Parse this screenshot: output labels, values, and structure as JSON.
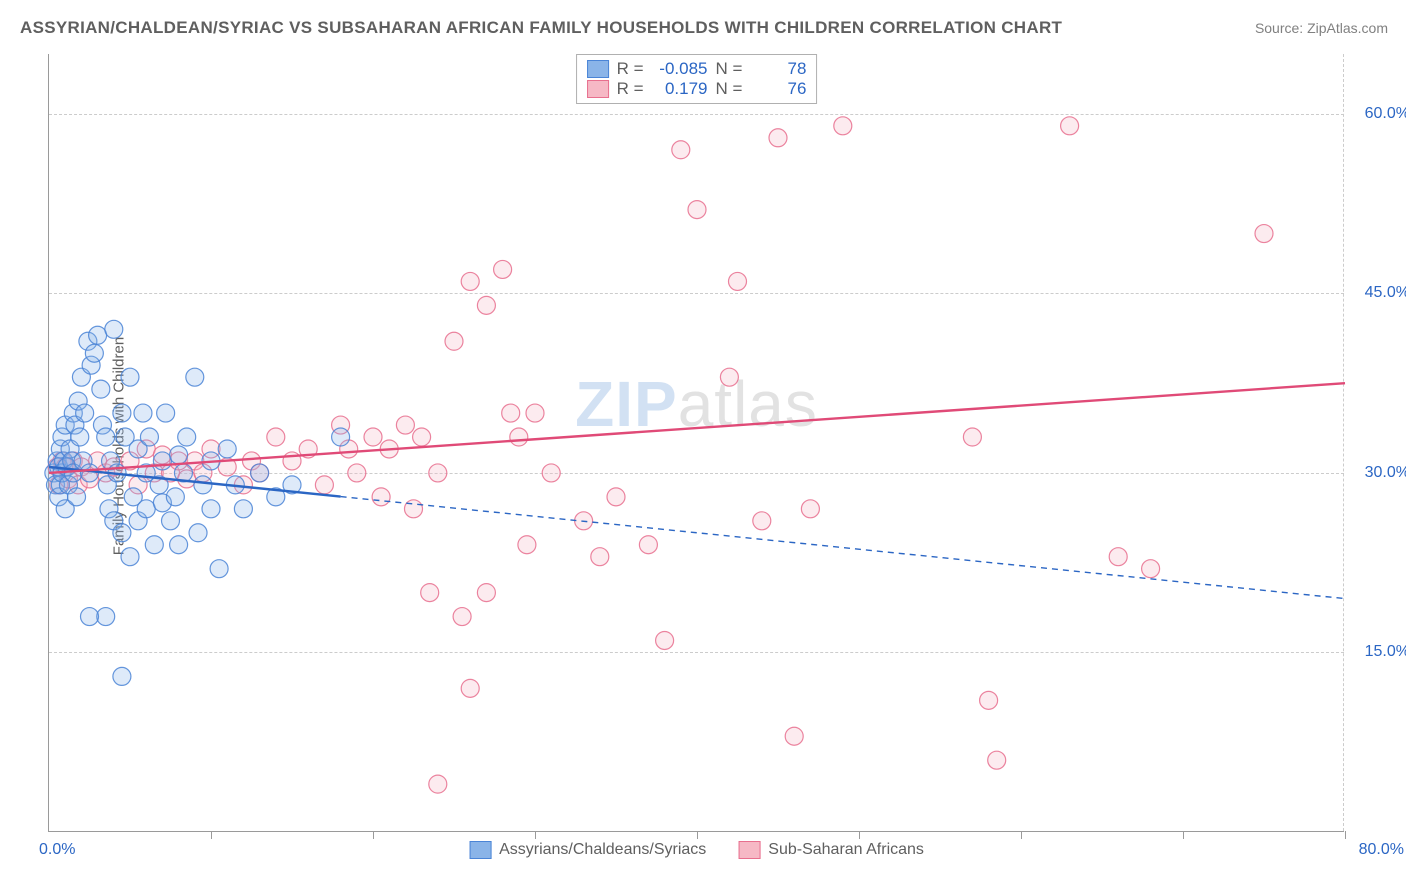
{
  "title": "ASSYRIAN/CHALDEAN/SYRIAC VS SUBSAHARAN AFRICAN FAMILY HOUSEHOLDS WITH CHILDREN CORRELATION CHART",
  "source": "Source: ZipAtlas.com",
  "watermark_zip": "ZIP",
  "watermark_atlas": "atlas",
  "ylabel": "Family Households with Children",
  "chart": {
    "type": "scatter",
    "xlim": [
      0,
      80
    ],
    "ylim": [
      0,
      65
    ],
    "xticks": [
      0,
      10,
      20,
      30,
      40,
      50,
      60,
      70,
      80
    ],
    "yticks": [
      15,
      30,
      45,
      60
    ],
    "ytick_labels": [
      "15.0%",
      "30.0%",
      "45.0%",
      "60.0%"
    ],
    "xmin_label": "0.0%",
    "xmax_label": "80.0%",
    "background_color": "#ffffff",
    "grid_color": "#cccccc",
    "axis_color": "#9a9a9a",
    "tick_label_color": "#2b66c4",
    "marker_radius": 9,
    "marker_fill_opacity": 0.28,
    "marker_stroke_opacity": 0.85,
    "marker_stroke_width": 1.2,
    "line_width": 2.4,
    "dash_pattern": "6,5"
  },
  "series": {
    "blue": {
      "label": "Assyrians/Chaldeans/Syriacs",
      "fill": "#8ab4e8",
      "stroke": "#4a84d6",
      "line_color": "#2b66c4",
      "R": "-0.085",
      "N": "78",
      "trend": {
        "x1": 0,
        "y1": 30.5,
        "x2": 80,
        "y2": 19.5,
        "solid_until_x": 18
      },
      "points": [
        [
          0.3,
          30
        ],
        [
          0.4,
          29
        ],
        [
          0.5,
          31
        ],
        [
          0.6,
          28
        ],
        [
          0.6,
          30.5
        ],
        [
          0.7,
          32
        ],
        [
          0.7,
          29
        ],
        [
          0.8,
          33
        ],
        [
          0.8,
          30
        ],
        [
          0.9,
          31
        ],
        [
          1.0,
          34
        ],
        [
          1.0,
          27
        ],
        [
          1.1,
          30.5
        ],
        [
          1.2,
          29
        ],
        [
          1.3,
          32
        ],
        [
          1.4,
          31
        ],
        [
          1.5,
          35
        ],
        [
          1.5,
          30
        ],
        [
          1.6,
          34
        ],
        [
          1.7,
          28
        ],
        [
          1.8,
          36
        ],
        [
          1.9,
          33
        ],
        [
          2.0,
          38
        ],
        [
          2.1,
          31
        ],
        [
          2.2,
          35
        ],
        [
          2.4,
          41
        ],
        [
          2.5,
          30
        ],
        [
          2.6,
          39
        ],
        [
          2.8,
          40
        ],
        [
          3.0,
          41.5
        ],
        [
          3.2,
          37
        ],
        [
          3.3,
          34
        ],
        [
          3.5,
          33
        ],
        [
          3.6,
          29
        ],
        [
          3.7,
          27
        ],
        [
          3.8,
          31
        ],
        [
          4.0,
          42
        ],
        [
          4.0,
          26
        ],
        [
          4.2,
          30
        ],
        [
          4.5,
          35
        ],
        [
          4.5,
          25
        ],
        [
          4.7,
          33
        ],
        [
          5.0,
          38
        ],
        [
          5.0,
          23
        ],
        [
          5.2,
          28
        ],
        [
          5.5,
          32
        ],
        [
          5.5,
          26
        ],
        [
          5.8,
          35
        ],
        [
          6.0,
          30
        ],
        [
          6.0,
          27
        ],
        [
          6.2,
          33
        ],
        [
          6.5,
          24
        ],
        [
          6.8,
          29
        ],
        [
          7.0,
          27.5
        ],
        [
          7.0,
          31
        ],
        [
          7.2,
          35
        ],
        [
          7.5,
          26
        ],
        [
          7.8,
          28
        ],
        [
          8.0,
          31.5
        ],
        [
          8.0,
          24
        ],
        [
          8.3,
          30
        ],
        [
          8.5,
          33
        ],
        [
          9.0,
          38
        ],
        [
          9.2,
          25
        ],
        [
          9.5,
          29
        ],
        [
          10.0,
          27
        ],
        [
          10.0,
          31
        ],
        [
          10.5,
          22
        ],
        [
          11.0,
          32
        ],
        [
          11.5,
          29
        ],
        [
          12.0,
          27
        ],
        [
          13.0,
          30
        ],
        [
          14.0,
          28
        ],
        [
          15.0,
          29
        ],
        [
          3.5,
          18
        ],
        [
          4.5,
          13
        ],
        [
          2.5,
          18
        ],
        [
          18.0,
          33
        ]
      ]
    },
    "pink": {
      "label": "Sub-Saharan Africans",
      "fill": "#f6b8c5",
      "stroke": "#e86f8e",
      "line_color": "#e04a77",
      "R": "0.179",
      "N": "76",
      "trend": {
        "x1": 0,
        "y1": 30.0,
        "x2": 80,
        "y2": 37.5,
        "solid_until_x": 80
      },
      "points": [
        [
          0.5,
          30.5
        ],
        [
          0.6,
          29
        ],
        [
          0.8,
          31
        ],
        [
          1.0,
          30.5
        ],
        [
          1.2,
          29.5
        ],
        [
          1.5,
          31
        ],
        [
          1.8,
          29
        ],
        [
          2.0,
          30.5
        ],
        [
          2.5,
          29.5
        ],
        [
          3.0,
          31
        ],
        [
          3.5,
          30
        ],
        [
          4.0,
          30.5
        ],
        [
          5.0,
          31
        ],
        [
          5.5,
          29
        ],
        [
          6.0,
          32
        ],
        [
          6.5,
          30
        ],
        [
          7.0,
          31.5
        ],
        [
          7.5,
          30
        ],
        [
          8.0,
          31
        ],
        [
          8.5,
          29.5
        ],
        [
          9.0,
          31
        ],
        [
          9.5,
          30
        ],
        [
          10.0,
          32
        ],
        [
          11.0,
          30.5
        ],
        [
          12.0,
          29
        ],
        [
          12.5,
          31
        ],
        [
          13.0,
          30
        ],
        [
          14.0,
          33
        ],
        [
          15.0,
          31
        ],
        [
          16.0,
          32
        ],
        [
          17.0,
          29
        ],
        [
          18.0,
          34
        ],
        [
          18.5,
          32
        ],
        [
          19.0,
          30
        ],
        [
          20.0,
          33
        ],
        [
          20.5,
          28
        ],
        [
          21.0,
          32
        ],
        [
          22.0,
          34
        ],
        [
          22.5,
          27
        ],
        [
          23.0,
          33
        ],
        [
          24.0,
          30
        ],
        [
          25.0,
          41
        ],
        [
          26.0,
          46
        ],
        [
          27.0,
          44
        ],
        [
          28.0,
          47
        ],
        [
          29.0,
          33
        ],
        [
          29.5,
          24
        ],
        [
          30.0,
          35
        ],
        [
          31.0,
          30
        ],
        [
          25.5,
          18
        ],
        [
          26.0,
          12
        ],
        [
          27.0,
          20
        ],
        [
          24.0,
          4
        ],
        [
          33.0,
          26
        ],
        [
          34.0,
          23
        ],
        [
          35.0,
          28
        ],
        [
          37.0,
          24
        ],
        [
          38.0,
          16
        ],
        [
          39.0,
          57
        ],
        [
          40.0,
          52
        ],
        [
          42.0,
          38
        ],
        [
          44.0,
          26
        ],
        [
          45.0,
          58
        ],
        [
          47.0,
          27
        ],
        [
          49.0,
          59
        ],
        [
          57.0,
          33
        ],
        [
          58.0,
          11
        ],
        [
          63.0,
          59
        ],
        [
          66.0,
          23
        ],
        [
          68.0,
          22
        ],
        [
          75.0,
          50
        ],
        [
          58.5,
          6
        ],
        [
          46.0,
          8
        ],
        [
          42.5,
          46
        ],
        [
          23.5,
          20
        ],
        [
          28.5,
          35
        ]
      ]
    }
  },
  "stats_legend": {
    "R_label": "R =",
    "N_label": "N ="
  }
}
